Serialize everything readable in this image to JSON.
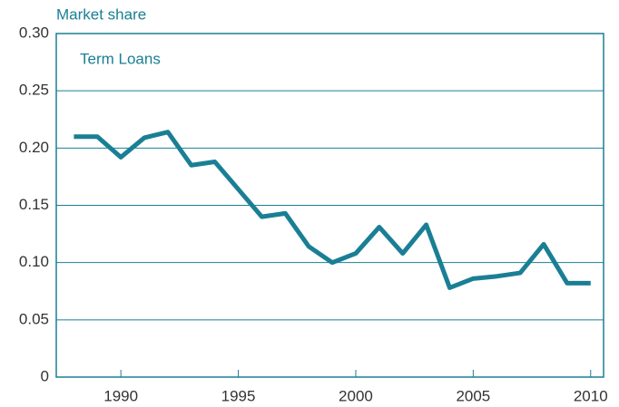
{
  "chart_data": {
    "type": "line",
    "y_label": "Market share",
    "annotation": "Term Loans",
    "x": [
      1988,
      1989,
      1990,
      1991,
      1992,
      1993,
      1994,
      1995,
      1996,
      1997,
      1998,
      1999,
      2000,
      2001,
      2002,
      2003,
      2004,
      2005,
      2006,
      2007,
      2008,
      2009,
      2010
    ],
    "series": [
      {
        "name": "Term Loans",
        "color": "#1a7f94",
        "values": [
          0.21,
          0.21,
          0.192,
          0.209,
          0.214,
          0.185,
          0.188,
          0.164,
          0.14,
          0.143,
          0.114,
          0.1,
          0.108,
          0.131,
          0.108,
          0.133,
          0.078,
          0.086,
          0.088,
          0.091,
          0.116,
          0.082,
          0.082
        ]
      }
    ],
    "xlim": [
      1987.25,
      2010.55
    ],
    "xticks": [
      1990,
      1995,
      2000,
      2005,
      2010
    ],
    "ylim": [
      0,
      0.3
    ],
    "yticks": [
      0,
      0.05,
      {
        "value": 0.1,
        "label": "0.10"
      },
      0.15,
      {
        "value": 0.2,
        "label": "0.20"
      },
      0.25,
      {
        "value": 0.3,
        "label": "0.30"
      }
    ],
    "grid": true
  }
}
